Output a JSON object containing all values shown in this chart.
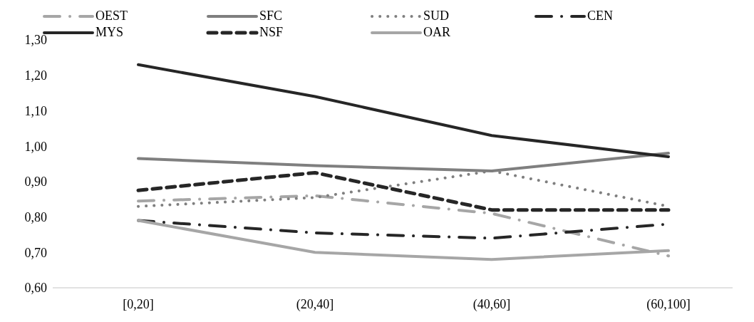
{
  "chart_data": {
    "type": "line",
    "categories": [
      "[0,20]",
      "(20,40]",
      "(40,60]",
      "(60,100]"
    ],
    "series": [
      {
        "name": "OEST",
        "color": "#a6a6a6",
        "line_style": "dashdot",
        "values": [
          0.845,
          0.86,
          0.81,
          0.69
        ]
      },
      {
        "name": "SFC",
        "color": "#7f7f7f",
        "line_style": "solid",
        "values": [
          0.965,
          0.945,
          0.93,
          0.98
        ]
      },
      {
        "name": "SUD",
        "color": "#7f7f7f",
        "line_style": "dotted",
        "values": [
          0.83,
          0.855,
          0.93,
          0.83
        ]
      },
      {
        "name": "CEN",
        "color": "#262626",
        "line_style": "dashdot",
        "values": [
          0.79,
          0.755,
          0.74,
          0.78
        ]
      },
      {
        "name": "MYS",
        "color": "#262626",
        "line_style": "solid",
        "values": [
          1.23,
          1.14,
          1.03,
          0.97
        ]
      },
      {
        "name": "NSF",
        "color": "#262626",
        "line_style": "dashed",
        "values": [
          0.875,
          0.925,
          0.82,
          0.82
        ]
      },
      {
        "name": "OAR",
        "color": "#a6a6a6",
        "line_style": "solid",
        "values": [
          0.79,
          0.7,
          0.68,
          0.705
        ]
      }
    ],
    "ylim": [
      0.6,
      1.3
    ],
    "yticks": [
      {
        "value": 0.6,
        "label": "0,60"
      },
      {
        "value": 0.7,
        "label": "0,70"
      },
      {
        "value": 0.8,
        "label": "0,80"
      },
      {
        "value": 0.9,
        "label": "0,90"
      },
      {
        "value": 1.0,
        "label": "1,00"
      },
      {
        "value": 1.1,
        "label": "1,10"
      },
      {
        "value": 1.2,
        "label": "1,20"
      },
      {
        "value": 1.3,
        "label": "1,30"
      }
    ],
    "grid": false,
    "legend": "top",
    "marker": "none"
  }
}
